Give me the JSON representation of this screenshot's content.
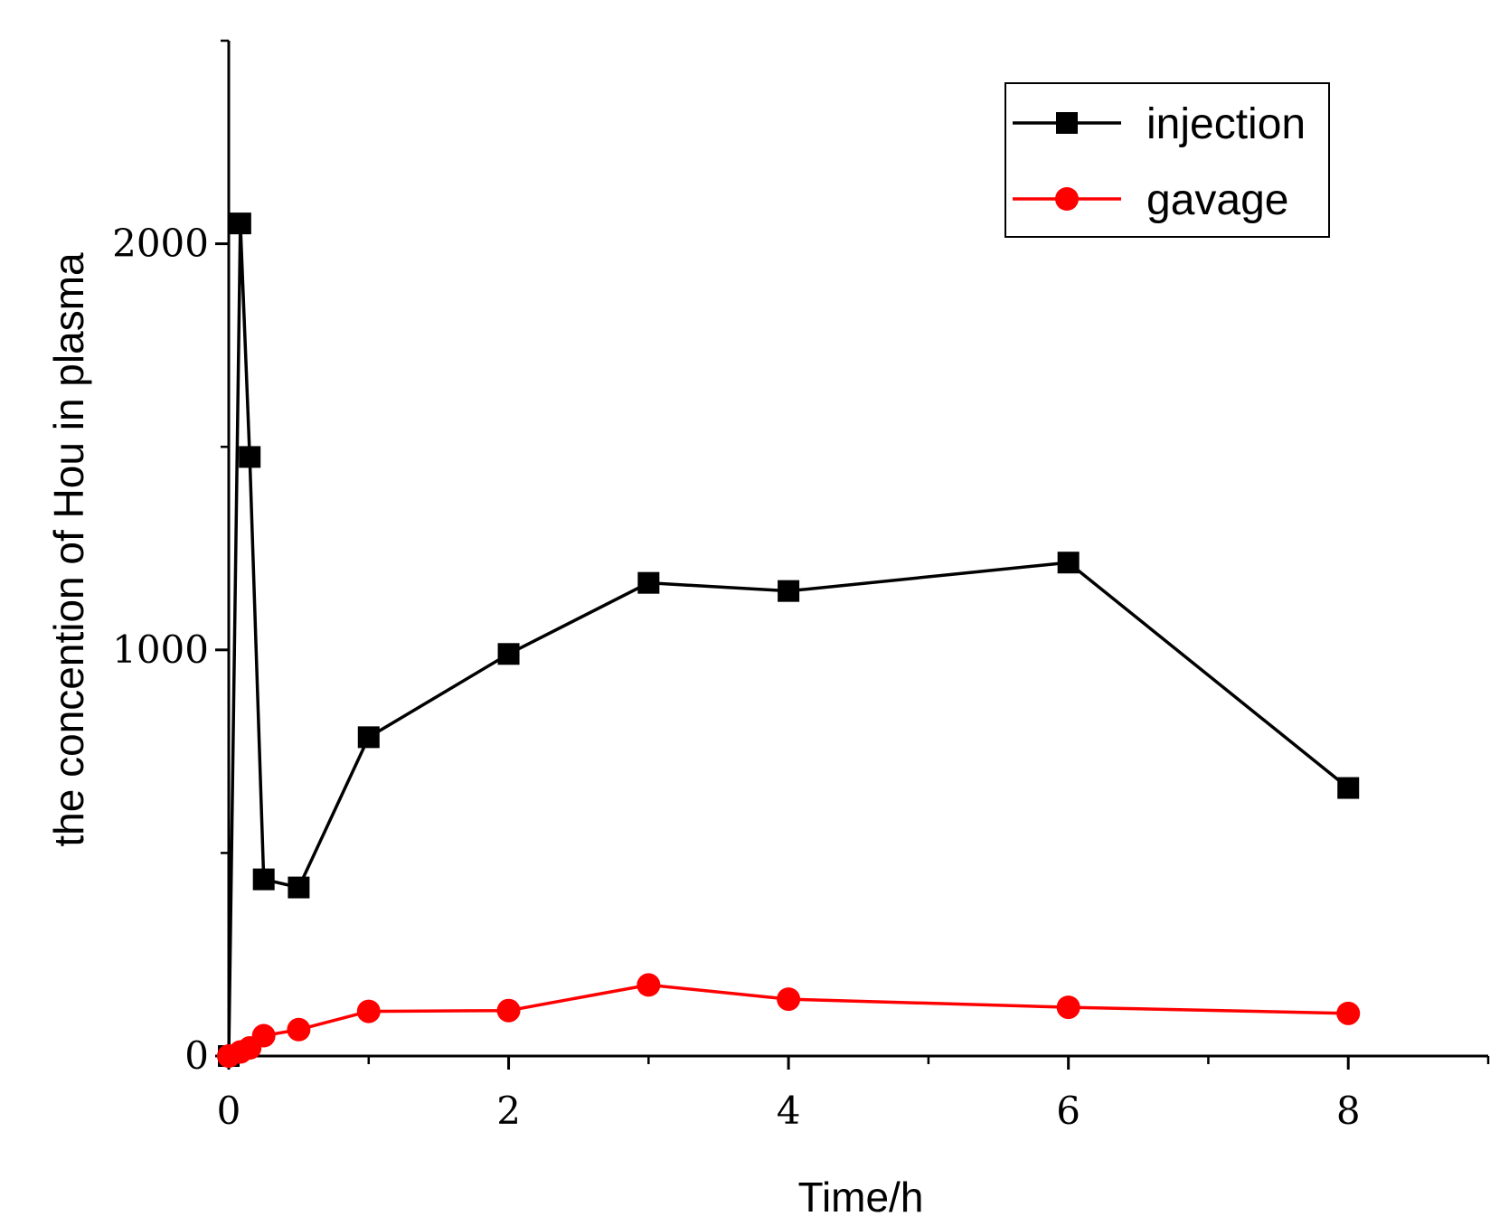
{
  "chart_data": {
    "type": "line",
    "xlabel": "Time/h",
    "ylabel": "the concention of Hou in plasma",
    "xlim": [
      0,
      9
    ],
    "ylim": [
      0,
      2500
    ],
    "xticks": [
      0,
      2,
      4,
      6,
      8
    ],
    "xticks_minor": [
      1,
      3,
      5,
      7,
      9
    ],
    "yticks": [
      0,
      1000,
      2000
    ],
    "yticks_minor": [
      500,
      1500,
      2500
    ],
    "grid": false,
    "legend_position": "top-right",
    "series": [
      {
        "name": "injection",
        "color": "#000000",
        "marker": "square",
        "x": [
          0,
          0.083,
          0.15,
          0.25,
          0.5,
          1,
          2,
          3,
          4,
          6,
          8
        ],
        "y": [
          0,
          2050,
          1475,
          435,
          415,
          785,
          990,
          1165,
          1145,
          1215,
          660
        ]
      },
      {
        "name": "gavage",
        "color": "#ff0000",
        "marker": "circle",
        "x": [
          0,
          0.083,
          0.15,
          0.25,
          0.5,
          1,
          2,
          3,
          4,
          6,
          8
        ],
        "y": [
          0,
          10,
          20,
          50,
          65,
          110,
          112,
          175,
          140,
          120,
          105
        ]
      }
    ]
  }
}
